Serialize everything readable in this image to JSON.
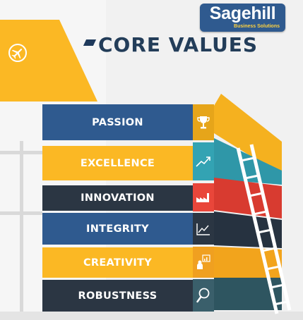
{
  "brand": {
    "name": "Sagehill",
    "tagline": "Business Solutions"
  },
  "title": "CORE VALUES",
  "values": [
    {
      "label": "PASSION",
      "icon": "trophy-icon"
    },
    {
      "label": "EXCELLENCE",
      "icon": "trend-line-icon"
    },
    {
      "label": "INNOVATION",
      "icon": "factory-icon"
    },
    {
      "label": "INTEGRITY",
      "icon": "line-chart-icon"
    },
    {
      "label": "CREATIVITY",
      "icon": "presenter-icon"
    },
    {
      "label": "ROBUSTNESS",
      "icon": "magnifier-icon"
    }
  ],
  "banner_icon": "airplane-icon",
  "colors": {
    "navy": "#2f5a8f",
    "dark_navy": "#233d59",
    "yellow": "#fbb824",
    "teal": "#33a3b3",
    "red": "#e9463a",
    "dark": "#2b3643"
  }
}
